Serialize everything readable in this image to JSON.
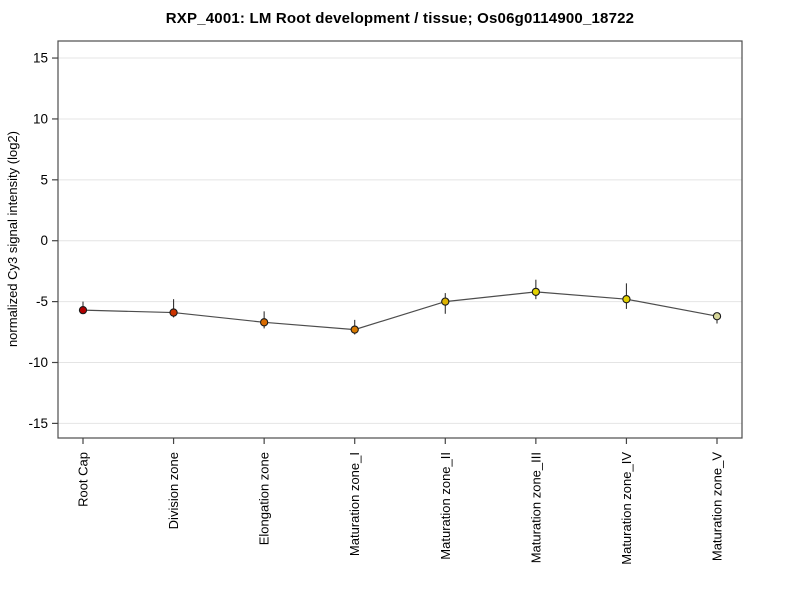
{
  "chart_data": {
    "type": "line",
    "title": "RXP_4001: LM Root development / tissue; Os06g0114900_18722",
    "ylabel": "normalized Cy3 signal intensity (log2)",
    "xlabel": "",
    "categories": [
      "Root Cap",
      "Division zone",
      "Elongation zone",
      "Maturation zone_I",
      "Maturation zone_II",
      "Maturation zone_III",
      "Maturation zone_IV",
      "Maturation zone_V"
    ],
    "values": [
      -5.7,
      -5.9,
      -6.7,
      -7.3,
      -5.0,
      -4.2,
      -4.8,
      -6.2
    ],
    "error_upper": [
      -5.0,
      -4.8,
      -5.8,
      -6.5,
      -4.3,
      -3.2,
      -3.5,
      -5.9
    ],
    "error_lower": [
      -6.0,
      -6.3,
      -7.2,
      -7.7,
      -6.0,
      -4.8,
      -5.6,
      -6.8
    ],
    "point_colors": [
      "#b30000",
      "#cc3300",
      "#d96b00",
      "#d97a00",
      "#ddb300",
      "#e3d200",
      "#e0cf00",
      "#d6d699"
    ],
    "y_ticks": [
      15,
      10,
      5,
      0,
      -5,
      -10,
      -15
    ],
    "ylim": [
      -16.2,
      16.4
    ],
    "grid": "horizontal",
    "legend": "none",
    "line_color": "#4d4d4d",
    "point_outline_color": "#1a1a1a",
    "error_bar_color": "#333333",
    "frame_color": "#4d4d4d",
    "grid_color": "#e4e4e4",
    "tick_color": "#444444",
    "label_color": "#000000",
    "background": "#ffffff"
  }
}
